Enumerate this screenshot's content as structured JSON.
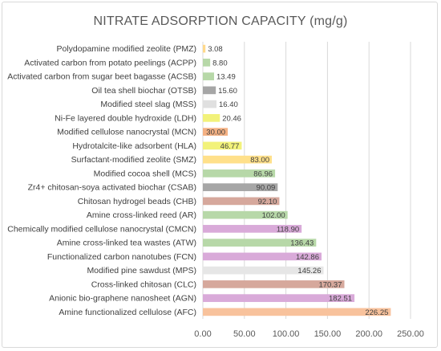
{
  "chart_data": {
    "type": "bar",
    "orientation": "horizontal",
    "title": "NITRATE ADSORPTION CAPACITY (mg/g)",
    "xlabel": "",
    "ylabel": "",
    "xlim": [
      0,
      250
    ],
    "xticks": [
      "0.00",
      "50.00",
      "100.00",
      "150.00",
      "200.00",
      "250.00"
    ],
    "grid": "vertical",
    "legend": "none",
    "categories": [
      "Polydopamine modified zeolite (PMZ)",
      "Activated carbon from potato peelings (ACPP)",
      "Activated carbon from sugar beet bagasse (ACSB)",
      "Oil tea shell biochar (OTSB)",
      "Modified steel slag (MSS)",
      "Ni-Fe layered double hydroxide (LDH)",
      "Modified cellulose nanocrystal (MCN)",
      "Hydrotalcite-like adsorbent (HLA)",
      "Surfactant-modified zeolite (SMZ)",
      "Modified cocoa shell (MCS)",
      "Zr4+ chitosan-soya activated biochar (CSAB)",
      "Chitosan hydrogel beads (CHB)",
      "Amine cross-linked reed (AR)",
      "Chemically modified cellulose nanocrystal (CMCN)",
      "Amine cross-linked tea wastes (ATW)",
      "Functionalized carbon nanotubes (FCN)",
      "Modified pine sawdust (MPS)",
      "Cross-linked chitosan (CLC)",
      "Anionic bio-graphene nanosheet (AGN)",
      "Amine functionalized cellulose (AFC)"
    ],
    "values": [
      3.08,
      8.8,
      13.49,
      15.6,
      16.4,
      20.46,
      30.0,
      46.77,
      83.0,
      86.96,
      90.09,
      92.1,
      102.0,
      118.9,
      136.43,
      142.86,
      145.26,
      170.37,
      182.51,
      226.25
    ],
    "value_labels": [
      "3.08",
      "8.80",
      "13.49",
      "15.60",
      "16.40",
      "20.46",
      "30.00",
      "46.77",
      "83.00",
      "86.96",
      "90.09",
      "92.10",
      "102.00",
      "118.90",
      "136.43",
      "142.86",
      "145.26",
      "170.37",
      "182.51",
      "226.25"
    ],
    "colors": [
      "#ffd98a",
      "#b7d8a8",
      "#b7d8a8",
      "#a6a6a6",
      "#e0e0e0",
      "#f2f27a",
      "#f4b183",
      "#f2f27a",
      "#ffe08a",
      "#b7d8a8",
      "#a6a6a6",
      "#d6a89c",
      "#b7d8a8",
      "#d9aad9",
      "#b7d8a8",
      "#d9aad9",
      "#e6e6e6",
      "#d6a89c",
      "#d9aad9",
      "#f8c29c"
    ]
  }
}
